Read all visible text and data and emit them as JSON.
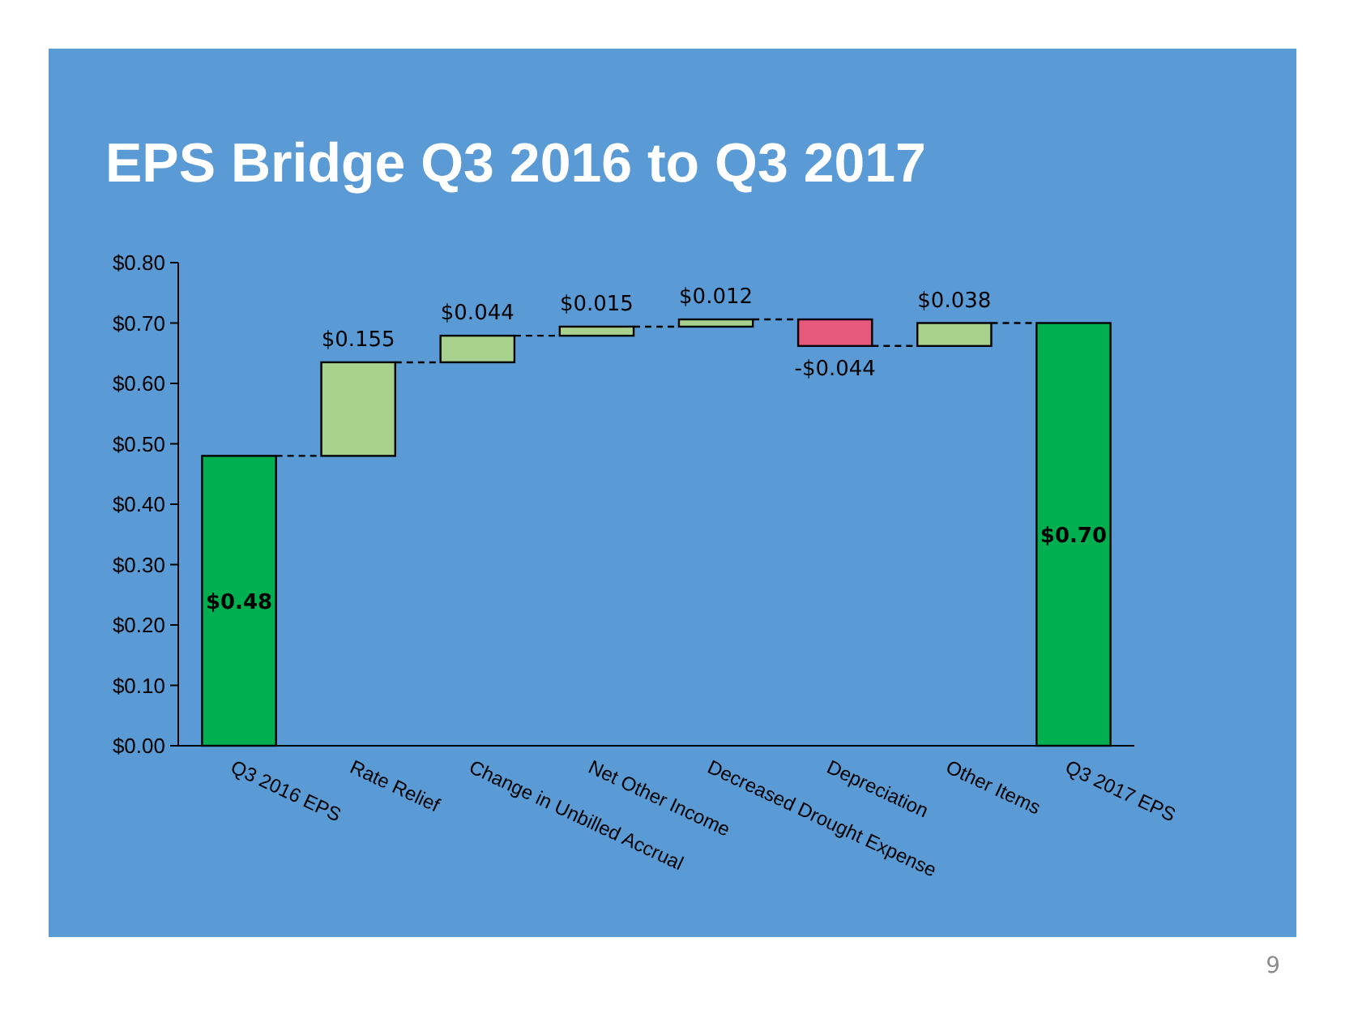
{
  "chart_data": {
    "type": "bar",
    "title": "EPS Bridge Q3 2016 to Q3 2017",
    "categories": [
      "Q3 2016 EPS",
      "Rate Relief",
      "Change in Unbilled Accrual",
      "Net Other Income",
      "Decreased Drought Expense",
      "Depreciation",
      "Other Items",
      "Q3 2017 EPS"
    ],
    "values": [
      0.48,
      0.155,
      0.044,
      0.015,
      0.012,
      -0.044,
      0.038,
      0.7
    ],
    "base": [
      0,
      0.48,
      0.635,
      0.679,
      0.694,
      0.706,
      0.662,
      0
    ],
    "colors": [
      "#00b050",
      "#a9d18e",
      "#a9d18e",
      "#a9d18e",
      "#a9d18e",
      "#e8587a",
      "#a9d18e",
      "#00b050"
    ],
    "value_labels": [
      "$0.48",
      "$0.155",
      "$0.044",
      "$0.015",
      "$0.012",
      "-$0.044",
      "$0.038",
      "$0.70"
    ],
    "ylim": [
      0,
      0.8
    ],
    "yticks": [
      {
        "value": 0,
        "label": "$0.00"
      },
      {
        "value": 0.1,
        "label": "$0.10"
      },
      {
        "value": 0.2,
        "label": "$0.20"
      },
      {
        "value": 0.3,
        "label": "$0.30"
      },
      {
        "value": 0.4,
        "label": "$0.40"
      },
      {
        "value": 0.5,
        "label": "$0.50"
      },
      {
        "value": 0.6,
        "label": "$0.60"
      },
      {
        "value": 0.7,
        "label": "$0.70"
      },
      {
        "value": 0.8,
        "label": "$0.80"
      }
    ],
    "grid": false,
    "annotations": [
      "9"
    ]
  }
}
